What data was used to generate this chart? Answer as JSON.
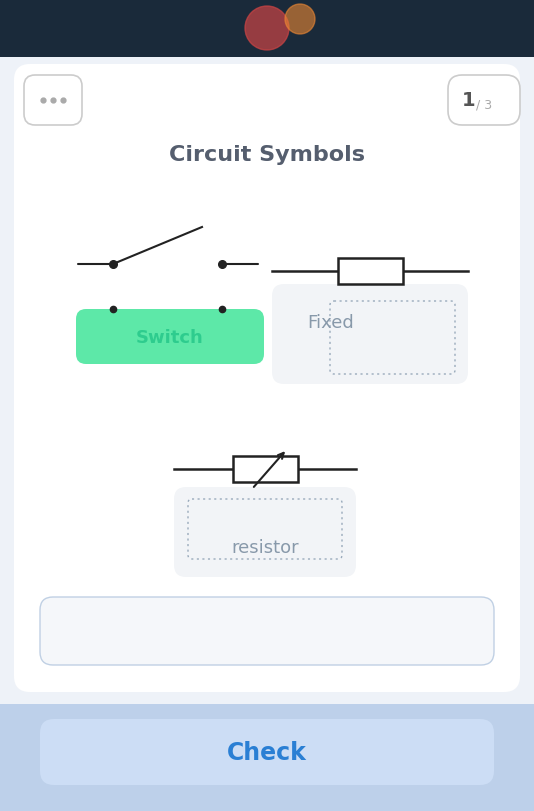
{
  "bg_color": "#eef2f8",
  "card_bg": "#ffffff",
  "title": "Circuit Symbols",
  "title_color": "#555e6e",
  "title_fontsize": 16,
  "dots_color": "#aaaaaa",
  "switch_label": "Switch",
  "switch_label_color": "#2ecc8e",
  "switch_bg": "#5de8a8",
  "fixed_label": "Fixed",
  "fixed_label_color": "#8899aa",
  "resistor_label": "resistor",
  "resistor_label_color": "#8899aa",
  "check_label": "Check",
  "check_color": "#2a7fd4",
  "check_bg": "#ccddf5",
  "line_color": "#222222",
  "bottom_bar_color": "#bdd0ea",
  "top_strip_color": "#1a2a3a"
}
